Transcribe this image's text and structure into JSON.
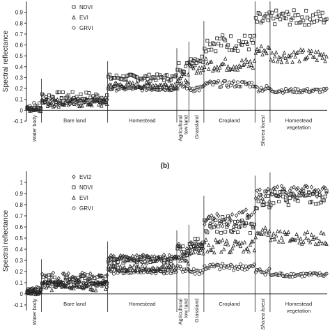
{
  "chart_data": [
    {
      "type": "scatter",
      "panel_label": "",
      "ylabel": "Spectral reflectance",
      "ylim": [
        -0.1,
        1.0
      ],
      "yticks": [
        "-0.1",
        "0",
        "0.1",
        "0.2",
        "0.3",
        "0.4",
        "0.5",
        "0.6",
        "0.7",
        "0.8",
        "0.9"
      ],
      "grid": false,
      "legend_position": "top-left",
      "x_range": [
        0,
        100
      ],
      "classes": [
        {
          "label": "Water body",
          "start": 0,
          "end": 5,
          "rotated": true,
          "italic": false
        },
        {
          "label": "Bare land",
          "start": 5,
          "end": 27,
          "rotated": false,
          "italic": false
        },
        {
          "label": "Homestead",
          "start": 27,
          "end": 50,
          "rotated": false,
          "italic": false
        },
        {
          "label": "Agricultural low land",
          "start": 50,
          "end": 54,
          "rotated": true,
          "italic": false
        },
        {
          "label": "Grassland",
          "start": 54,
          "end": 59,
          "rotated": true,
          "italic": false
        },
        {
          "label": "Cropland",
          "start": 59,
          "end": 76,
          "rotated": false,
          "italic": false
        },
        {
          "label": "Shorea forest",
          "start": 76,
          "end": 81,
          "rotated": true,
          "italic": true
        },
        {
          "label": "Homestead vegetation",
          "start": 81,
          "end": 100,
          "rotated": false,
          "italic": false
        }
      ],
      "series": [
        {
          "name": "NDVI",
          "marker": "square",
          "class_means": [
            0.02,
            0.12,
            0.3,
            0.4,
            0.47,
            0.62,
            0.82,
            0.85
          ],
          "class_spread": [
            0.02,
            0.05,
            0.03,
            0.05,
            0.04,
            0.08,
            0.08,
            0.07
          ]
        },
        {
          "name": "EVI",
          "marker": "triangle",
          "class_means": [
            0.01,
            0.07,
            0.23,
            0.3,
            0.38,
            0.42,
            0.55,
            0.5
          ],
          "class_spread": [
            0.02,
            0.04,
            0.03,
            0.04,
            0.04,
            0.06,
            0.05,
            0.06
          ]
        },
        {
          "name": "GRVI",
          "marker": "circle",
          "class_means": [
            0.04,
            0.08,
            0.2,
            0.22,
            0.2,
            0.24,
            0.2,
            0.18
          ],
          "class_spread": [
            0.03,
            0.03,
            0.02,
            0.03,
            0.03,
            0.03,
            0.03,
            0.02
          ]
        }
      ]
    },
    {
      "type": "scatter",
      "panel_label": "(b)",
      "ylabel": "Spectral reflectance",
      "ylim": [
        -0.15,
        1.1
      ],
      "yticks": [
        "-0.1",
        "0",
        "0.1",
        "0.2",
        "0.3",
        "0.4",
        "0.5",
        "0.6",
        "0.7",
        "0.8",
        "0.9",
        "1"
      ],
      "grid": false,
      "legend_position": "top-left",
      "x_range": [
        0,
        100
      ],
      "classes": [
        {
          "label": "Water body",
          "start": 0,
          "end": 5,
          "rotated": true,
          "italic": false
        },
        {
          "label": "Bare land",
          "start": 5,
          "end": 27,
          "rotated": false,
          "italic": false
        },
        {
          "label": "Homestead",
          "start": 27,
          "end": 50,
          "rotated": false,
          "italic": false
        },
        {
          "label": "Agricultural low land",
          "start": 50,
          "end": 54,
          "rotated": true,
          "italic": false
        },
        {
          "label": "Grassland",
          "start": 54,
          "end": 59,
          "rotated": true,
          "italic": false
        },
        {
          "label": "Cropland",
          "start": 59,
          "end": 76,
          "rotated": false,
          "italic": false
        },
        {
          "label": "Shorea forest",
          "start": 76,
          "end": 81,
          "rotated": true,
          "italic": true
        },
        {
          "label": "Homestead vegetation",
          "start": 81,
          "end": 100,
          "rotated": false,
          "italic": false
        }
      ],
      "series": [
        {
          "name": "EVI2",
          "marker": "diamond",
          "class_means": [
            0.02,
            0.14,
            0.32,
            0.4,
            0.44,
            0.68,
            0.88,
            0.92
          ],
          "class_spread": [
            0.02,
            0.05,
            0.03,
            0.05,
            0.04,
            0.08,
            0.06,
            0.05
          ]
        },
        {
          "name": "NDVI",
          "marker": "square",
          "class_means": [
            0.02,
            0.12,
            0.3,
            0.38,
            0.46,
            0.62,
            0.84,
            0.86
          ],
          "class_spread": [
            0.02,
            0.05,
            0.03,
            0.05,
            0.04,
            0.08,
            0.08,
            0.07
          ]
        },
        {
          "name": "EVI",
          "marker": "triangle",
          "class_means": [
            0.01,
            0.07,
            0.23,
            0.3,
            0.38,
            0.43,
            0.55,
            0.5
          ],
          "class_spread": [
            0.02,
            0.04,
            0.03,
            0.04,
            0.04,
            0.06,
            0.05,
            0.06
          ]
        },
        {
          "name": "GRVI",
          "marker": "circle",
          "class_means": [
            0.04,
            0.08,
            0.2,
            0.22,
            0.2,
            0.24,
            0.2,
            0.17
          ],
          "class_spread": [
            0.03,
            0.03,
            0.02,
            0.03,
            0.03,
            0.03,
            0.03,
            0.02
          ]
        }
      ]
    }
  ]
}
